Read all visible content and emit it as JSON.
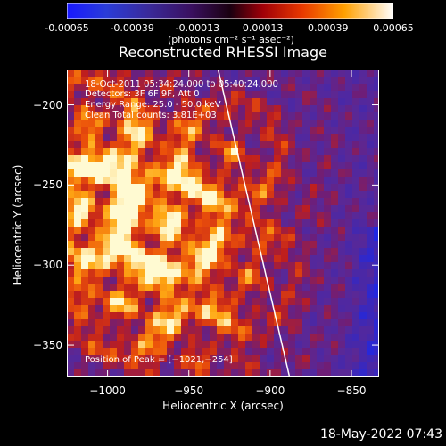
{
  "chart_data": {
    "type": "heatmap",
    "title": "Reconstructed RHESSI Image",
    "xlabel": "Heliocentric X (arcsec)",
    "ylabel": "Heliocentric Y (arcsec)",
    "xlim": [
      -1025,
      -833
    ],
    "ylim": [
      -370,
      -178
    ],
    "xticks": [
      -1000,
      -950,
      -900,
      -850
    ],
    "xtick_labels": [
      "−1000",
      "−950",
      "−900",
      "−850"
    ],
    "yticks": [
      -200,
      -250,
      -300,
      -350
    ],
    "ytick_labels": [
      "−200",
      "−250",
      "−300",
      "−350"
    ],
    "colorbar": {
      "range": [
        -0.00065,
        0.00065
      ],
      "tick_labels": [
        "-0.00065",
        "-0.00039",
        "-0.00013",
        "0.00013",
        "0.00039",
        "0.00065"
      ],
      "unit_label": "(photons cm⁻² s⁻¹ asec⁻²)"
    },
    "annotations": [
      "18-Oct-2011 05:34:24.000 to 05:40:24.000",
      "Detectors: 3F 6F 9F, Att 0",
      "Energy Range: 25.0 - 50.0 keV",
      "Clean     Total counts: 3.81E+03"
    ],
    "peak_label": "Position of Peak = [−1021,−254]",
    "limb_line": {
      "x": [
        -932,
        -888
      ],
      "y": [
        -178,
        -370
      ]
    },
    "grid": false
  },
  "footer": {
    "timestamp": "18-May-2022 07:43"
  },
  "colors": {
    "background": "#000000",
    "limb": "#ffffff"
  }
}
